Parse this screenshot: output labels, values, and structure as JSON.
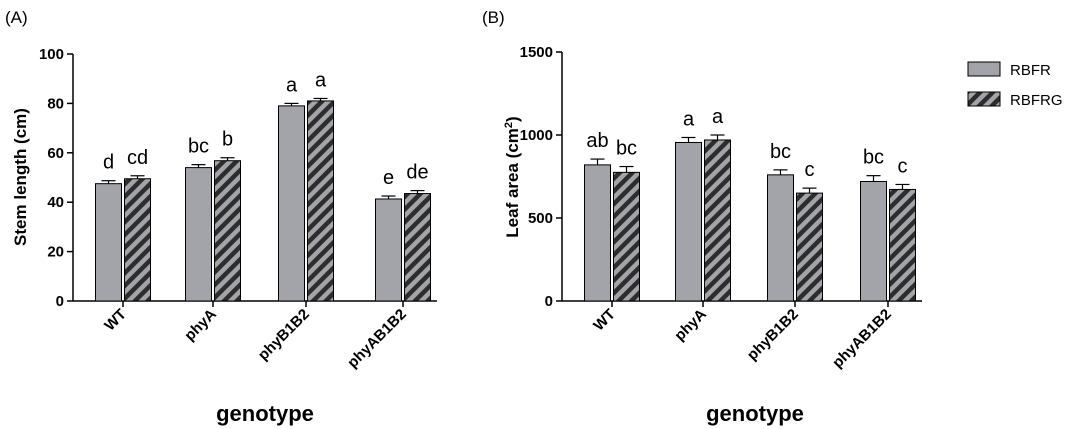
{
  "panels": [
    "(A)",
    "(B)"
  ],
  "legend": {
    "items": [
      {
        "label": "RBFR",
        "style": "solid"
      },
      {
        "label": "RBFRG",
        "style": "hatched"
      }
    ]
  },
  "colors": {
    "bar_fill": "#a2a4aa",
    "hatch_dark": "#2d2d2d",
    "axis": "#000000"
  },
  "chart_data": [
    {
      "panel": "(A)",
      "type": "bar",
      "categories": [
        "WT",
        "phyA",
        "phyB1B2",
        "phyAB1B2"
      ],
      "series": [
        {
          "name": "RBFR",
          "values": [
            47.5,
            54,
            79,
            41.3
          ],
          "errors": [
            1.2,
            1.2,
            1.0,
            1.2
          ]
        },
        {
          "name": "RBFRG",
          "values": [
            49.5,
            56.8,
            81,
            43.5
          ],
          "errors": [
            1.2,
            1.2,
            1.0,
            1.2
          ]
        }
      ],
      "significance": [
        [
          "d",
          "cd"
        ],
        [
          "bc",
          "b"
        ],
        [
          "a",
          "a"
        ],
        [
          "e",
          "de"
        ]
      ],
      "xlabel": "genotype",
      "ylabel": "Stem length (cm)",
      "ylim": [
        0,
        100
      ],
      "yticks": [
        0,
        20,
        40,
        60,
        80,
        100
      ]
    },
    {
      "panel": "(B)",
      "type": "bar",
      "categories": [
        "WT",
        "phyA",
        "phyB1B2",
        "phyAB1B2"
      ],
      "series": [
        {
          "name": "RBFR",
          "values": [
            820,
            955,
            760,
            720
          ],
          "errors": [
            35,
            30,
            30,
            35
          ]
        },
        {
          "name": "RBFRG",
          "values": [
            775,
            970,
            650,
            672
          ],
          "errors": [
            35,
            30,
            30,
            30
          ]
        }
      ],
      "significance": [
        [
          "ab",
          "bc"
        ],
        [
          "a",
          "a"
        ],
        [
          "bc",
          "c"
        ],
        [
          "bc",
          "c"
        ]
      ],
      "xlabel": "genotype",
      "ylabel": "Leaf area (cm²)",
      "ylim": [
        0,
        1500
      ],
      "yticks": [
        0,
        500,
        1000,
        1500
      ]
    }
  ]
}
